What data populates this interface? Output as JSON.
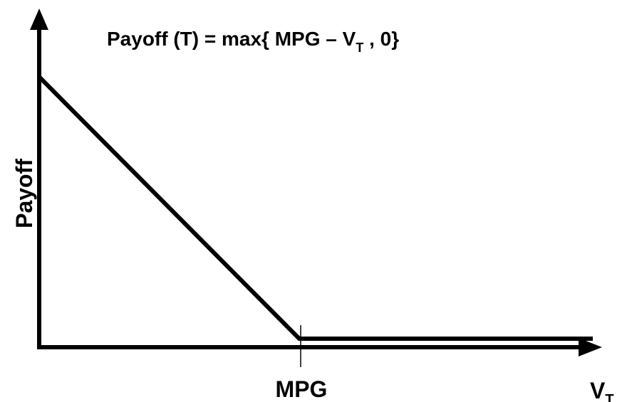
{
  "title": {
    "main": "Payoff (T) = max{ MPG – V",
    "subscript": "T",
    "rest": " , 0}"
  },
  "y_axis_label": "Payoff",
  "x_tick_label": "MPG",
  "x_axis_label": {
    "main": "V",
    "subscript": "T"
  }
}
